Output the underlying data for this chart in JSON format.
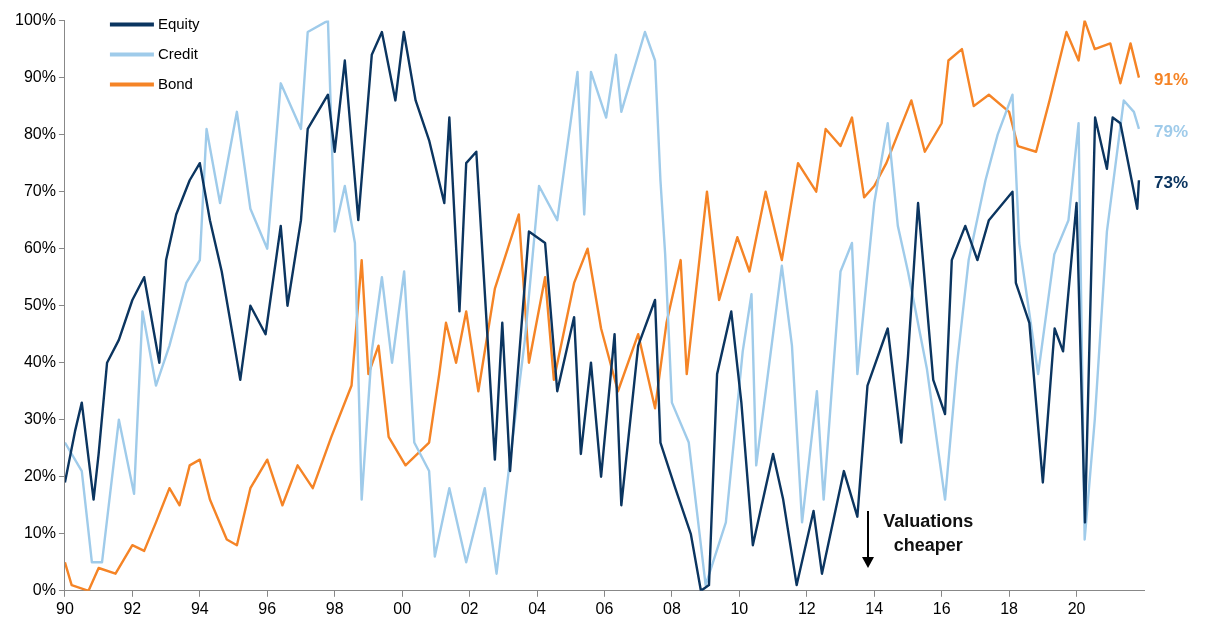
{
  "chart_data": {
    "type": "line",
    "xlim": [
      1990,
      2022
    ],
    "xticks": [
      {
        "value": 1990,
        "label": "90"
      },
      {
        "value": 1992,
        "label": "92"
      },
      {
        "value": 1994,
        "label": "94"
      },
      {
        "value": 1996,
        "label": "96"
      },
      {
        "value": 1998,
        "label": "98"
      },
      {
        "value": 2000,
        "label": "00"
      },
      {
        "value": 2002,
        "label": "02"
      },
      {
        "value": 2004,
        "label": "04"
      },
      {
        "value": 2006,
        "label": "06"
      },
      {
        "value": 2008,
        "label": "08"
      },
      {
        "value": 2010,
        "label": "10"
      },
      {
        "value": 2012,
        "label": "12"
      },
      {
        "value": 2014,
        "label": "14"
      },
      {
        "value": 2016,
        "label": "16"
      },
      {
        "value": 2018,
        "label": "18"
      },
      {
        "value": 2020,
        "label": "20"
      }
    ],
    "ylim": [
      0,
      100
    ],
    "yticks": [
      {
        "value": 0,
        "label": "0%"
      },
      {
        "value": 10,
        "label": "10%"
      },
      {
        "value": 20,
        "label": "20%"
      },
      {
        "value": 30,
        "label": "30%"
      },
      {
        "value": 40,
        "label": "40%"
      },
      {
        "value": 50,
        "label": "50%"
      },
      {
        "value": 60,
        "label": "60%"
      },
      {
        "value": 70,
        "label": "70%"
      },
      {
        "value": 80,
        "label": "80%"
      },
      {
        "value": 90,
        "label": "90%"
      },
      {
        "value": 100,
        "label": "100%"
      }
    ],
    "grid": false,
    "legend": "top left",
    "marker": "none",
    "line_style": "solid",
    "series": [
      {
        "name": "Equity",
        "color": "#0b3560",
        "x": [
          1990,
          1990.3,
          1990.5,
          1990.85,
          1991.0,
          1991.25,
          1991.6,
          1992.0,
          1992.35,
          1992.8,
          1993.0,
          1993.3,
          1993.7,
          1994.0,
          1994.3,
          1994.65,
          1995.0,
          1995.2,
          1995.5,
          1995.95,
          1996.4,
          1996.6,
          1997.0,
          1997.2,
          1997.8,
          1998.0,
          1998.3,
          1998.7,
          1999.1,
          1999.4,
          1999.8,
          2000.05,
          2000.4,
          2000.8,
          2001.25,
          2001.4,
          2001.7,
          2001.9,
          2002.2,
          2002.75,
          2002.97,
          2003.2,
          2003.76,
          2004.24,
          2004.6,
          2005.1,
          2005.3,
          2005.6,
          2005.9,
          2006.3,
          2006.5,
          2007.0,
          2007.5,
          2007.66,
          2008.1,
          2008.56,
          2008.86,
          2009.1,
          2009.34,
          2009.76,
          2010.06,
          2010.4,
          2011.0,
          2011.3,
          2011.7,
          2012.2,
          2012.45,
          2013.1,
          2013.5,
          2013.8,
          2014.4,
          2014.8,
          2015.0,
          2015.3,
          2015.75,
          2016.1,
          2016.3,
          2016.7,
          2017.06,
          2017.4,
          2018.1,
          2018.2,
          2018.6,
          2019.0,
          2019.35,
          2019.6,
          2020.0,
          2020.25,
          2020.55,
          2020.9,
          2021.07,
          2021.3,
          2021.8,
          2021.85
        ],
        "values": [
          19,
          28,
          33,
          16,
          24,
          40,
          44,
          51,
          55,
          40,
          58,
          66,
          72,
          75,
          65,
          56,
          44,
          37,
          50,
          45,
          64,
          50,
          65,
          81,
          87,
          77,
          93,
          65,
          94,
          98,
          86,
          98,
          86,
          79,
          68,
          83,
          49,
          75,
          77,
          23,
          47,
          21,
          63,
          61,
          35,
          48,
          24,
          40,
          20,
          45,
          15,
          43,
          51,
          26,
          18,
          10,
          0,
          1,
          38,
          49,
          33,
          8,
          24,
          16,
          1,
          14,
          3,
          21,
          13,
          36,
          46,
          26,
          41,
          68,
          37,
          31,
          58,
          64,
          58,
          65,
          70,
          54,
          47,
          19,
          46,
          42,
          68,
          12,
          83,
          74,
          83,
          82,
          67,
          72
        ]
      },
      {
        "name": "Credit",
        "color": "#9fcbea",
        "x": [
          1990,
          1990.5,
          1990.8,
          1991.1,
          1991.6,
          1992.05,
          1992.3,
          1992.7,
          1993.1,
          1993.6,
          1994.0,
          1994.2,
          1994.6,
          1995.1,
          1995.5,
          1996.0,
          1996.4,
          1997.0,
          1997.2,
          1997.8,
          1998.0,
          1998.3,
          1998.6,
          1998.8,
          1999.1,
          1999.4,
          1999.7,
          2000.06,
          2000.36,
          2000.8,
          2000.97,
          2001.4,
          2001.9,
          2002.45,
          2002.8,
          2003.2,
          2003.64,
          2004.06,
          2004.6,
          2005.2,
          2005.4,
          2005.6,
          2006.05,
          2006.34,
          2006.5,
          2007.2,
          2007.5,
          2007.66,
          2007.8,
          2008.0,
          2008.5,
          2009.0,
          2009.6,
          2010.1,
          2010.36,
          2010.5,
          2011.26,
          2011.56,
          2011.86,
          2012.3,
          2012.5,
          2013.0,
          2013.34,
          2013.5,
          2014.0,
          2014.4,
          2014.7,
          2015.0,
          2015.56,
          2016.1,
          2016.46,
          2016.8,
          2017.3,
          2017.66,
          2018.1,
          2018.3,
          2018.86,
          2019.34,
          2019.76,
          2020.06,
          2020.24,
          2020.54,
          2020.9,
          2021.4,
          2021.7,
          2021.85
        ],
        "values": [
          26,
          21,
          5,
          5,
          30,
          17,
          49,
          36,
          43,
          54,
          58,
          81,
          68,
          84,
          67,
          60,
          89,
          81,
          98,
          100,
          63,
          71,
          61,
          16,
          42,
          55,
          40,
          56,
          26,
          21,
          6,
          18,
          5,
          18,
          3,
          23,
          44,
          71,
          65,
          91,
          66,
          91,
          83,
          94,
          84,
          98,
          93,
          72,
          59,
          33,
          26,
          1,
          12,
          42,
          52,
          22,
          57,
          43,
          12,
          35,
          16,
          56,
          61,
          38,
          68,
          82,
          64,
          56,
          39,
          16,
          40,
          58,
          72,
          80,
          87,
          61,
          38,
          59,
          65,
          82,
          9,
          30,
          63,
          86,
          84,
          81
        ]
      },
      {
        "name": "Bond",
        "color": "#f58426",
        "x": [
          1990,
          1990.2,
          1990.7,
          1991.0,
          1991.5,
          1992.0,
          1992.35,
          1992.7,
          1993.1,
          1993.4,
          1993.7,
          1994.0,
          1994.3,
          1994.8,
          1995.1,
          1995.5,
          1996.0,
          1996.45,
          1996.9,
          1997.35,
          1997.9,
          1998.5,
          1998.8,
          1999.0,
          1999.3,
          1999.6,
          2000.1,
          2000.8,
          2001.1,
          2001.3,
          2001.6,
          2001.9,
          2002.26,
          2002.75,
          2003.46,
          2003.76,
          2004.24,
          2004.5,
          2005.1,
          2005.5,
          2005.9,
          2006.4,
          2007.0,
          2007.5,
          2007.84,
          2008.26,
          2008.44,
          2009.04,
          2009.4,
          2009.94,
          2010.3,
          2010.78,
          2011.26,
          2011.74,
          2012.28,
          2012.56,
          2013.0,
          2013.34,
          2013.7,
          2014.0,
          2014.36,
          2015.1,
          2015.5,
          2016.0,
          2016.2,
          2016.6,
          2016.95,
          2017.4,
          2018.0,
          2018.26,
          2018.8,
          2019.2,
          2019.7,
          2020.06,
          2020.24,
          2020.54,
          2021.0,
          2021.3,
          2021.6,
          2021.85
        ],
        "values": [
          5,
          1,
          0,
          4,
          3,
          8,
          7,
          12,
          18,
          15,
          22,
          23,
          16,
          9,
          8,
          18,
          23,
          15,
          22,
          18,
          27,
          36,
          58,
          38,
          43,
          27,
          22,
          26,
          38,
          47,
          40,
          49,
          35,
          53,
          66,
          40,
          55,
          37,
          54,
          60,
          46,
          35,
          45,
          32,
          47,
          58,
          38,
          70,
          51,
          62,
          56,
          70,
          58,
          75,
          70,
          81,
          78,
          83,
          69,
          71,
          75,
          86,
          77,
          82,
          93,
          95,
          85,
          87,
          84,
          78,
          77,
          86,
          98,
          93,
          100,
          95,
          96,
          89,
          96,
          90
        ]
      }
    ],
    "annotations": [
      "73%",
      "79%",
      "91%",
      "Valuations cheaper"
    ]
  }
}
